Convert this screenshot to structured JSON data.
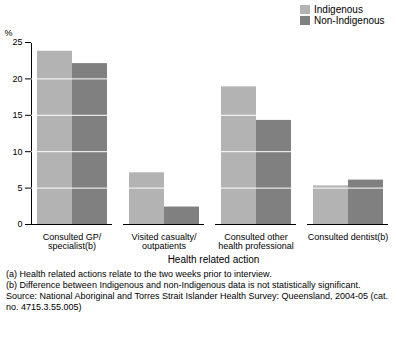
{
  "chart_data": {
    "type": "bar",
    "y_label": "%",
    "x_label": "Health related action",
    "categories": [
      "Consulted GP/\nspecialist(b)",
      "Visited casualty/\noutpatients",
      "Consulted other\nhealth professional",
      "Consulted dentist(b)"
    ],
    "series": [
      {
        "name": "Indigenous",
        "color": "#b3b3b3",
        "values": [
          23.8,
          7.1,
          18.9,
          5.3
        ]
      },
      {
        "name": "Non-Indigenous",
        "color": "#808080",
        "values": [
          22.1,
          2.4,
          14.3,
          6.1
        ]
      }
    ],
    "ylim": [
      0,
      25
    ],
    "yticks": [
      0,
      5,
      10,
      15,
      20,
      25
    ],
    "grid": true,
    "legend": "top-right",
    "annotations": [
      "(a) Health related actions relate to the two weeks prior to interview.",
      "(b) Difference between Indigenous and non-Indigenous data is not statistically significant.",
      "Source: National Aboriginal and Torres Strait Islander Health Survey: Queensland, 2004-05 (cat. no. 4715.3.55.005)"
    ]
  }
}
